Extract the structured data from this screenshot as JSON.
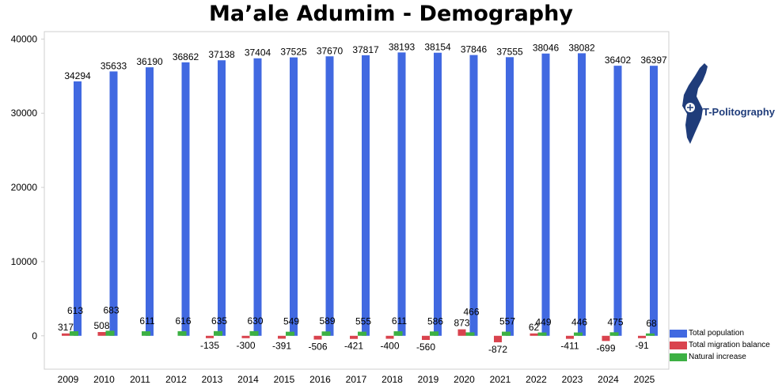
{
  "chart_data": {
    "type": "bar",
    "title": "Ma’ale Adumim - Demography",
    "categories": [
      "2009",
      "2010",
      "2011",
      "2012",
      "2013",
      "2014",
      "2015",
      "2016",
      "2017",
      "2018",
      "2019",
      "2020",
      "2021",
      "2022",
      "2023",
      "2024",
      "2025"
    ],
    "series": [
      {
        "name": "Total population",
        "color": "#4169e1",
        "values": [
          34294,
          35633,
          36190,
          36862,
          37138,
          37404,
          37525,
          37670,
          37817,
          38193,
          38154,
          37846,
          37555,
          38046,
          38082,
          36402,
          36397
        ]
      },
      {
        "name": "Total migration balance",
        "color": "#d9434e",
        "values": [
          317,
          508,
          null,
          null,
          -135,
          -300,
          -391,
          -506,
          -421,
          -400,
          -560,
          873,
          -872,
          62,
          -411,
          -699,
          -91
        ]
      },
      {
        "name": "Natural increase",
        "color": "#3cb043",
        "values": [
          613,
          683,
          611,
          616,
          635,
          630,
          549,
          589,
          555,
          611,
          586,
          466,
          557,
          449,
          446,
          475,
          68
        ]
      }
    ],
    "yticks": [
      0,
      10000,
      20000,
      30000,
      40000
    ],
    "ylim": [
      -4500,
      41000
    ],
    "legend_position": "bottom-right",
    "grid": false
  },
  "logo": {
    "text": "T-Politography",
    "icon": "israel-map-logo-icon"
  }
}
